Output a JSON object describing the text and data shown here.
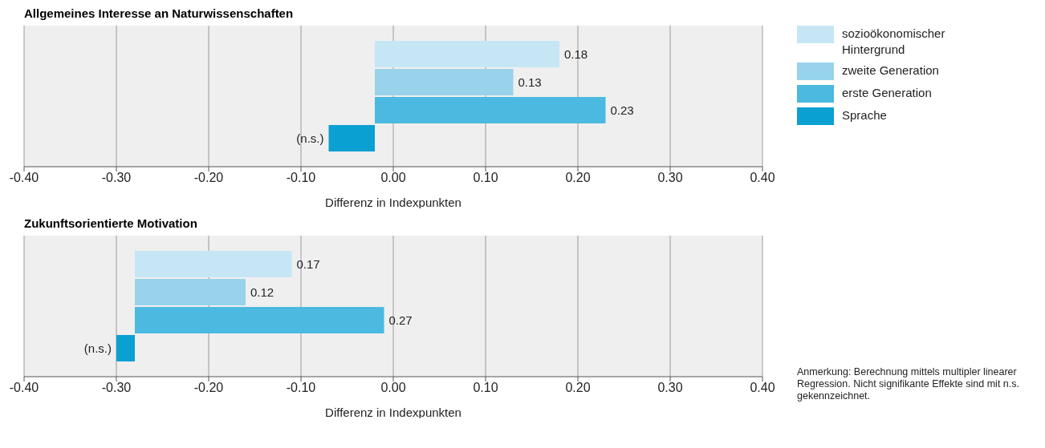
{
  "chart_data": [
    {
      "type": "bar",
      "orientation": "horizontal",
      "title": "Allgemeines Interesse an Naturwissenschaften",
      "xlabel": "Differenz in Indexpunkten",
      "categories": [
        null,
        null,
        null,
        null
      ],
      "xlim": [
        -0.4,
        0.4
      ],
      "xticks": [
        {
          "value": -0.4,
          "label": "-0.40"
        },
        {
          "value": -0.3,
          "label": "-0.30"
        },
        {
          "value": -0.2,
          "label": "-0.20"
        },
        {
          "value": -0.1,
          "label": "-0.10"
        },
        {
          "value": 0,
          "label": "0.00"
        },
        {
          "value": 0.1,
          "label": "0.10"
        },
        {
          "value": 0.2,
          "label": "0.20"
        },
        {
          "value": 0.3,
          "label": "0.30"
        },
        {
          "value": 0.4,
          "label": "0.40"
        }
      ],
      "grid": "x",
      "legend": "right",
      "series": [
        {
          "name": "sozioökonomischer Hintergrund",
          "color": "#c6e6f5",
          "base": [
            -0.02,
            null,
            null,
            null
          ],
          "values": [
            0.2,
            null,
            null,
            null
          ],
          "value_labels": [
            "0.18",
            null,
            null,
            null
          ]
        },
        {
          "name": "zweite Generation",
          "color": "#97d3ea",
          "base": [
            null,
            -0.02,
            null,
            null
          ],
          "values": [
            null,
            0.15,
            null,
            null
          ],
          "value_labels": [
            null,
            "0.13",
            null,
            null
          ]
        },
        {
          "name": "erste Generation",
          "color": "#4bb9e0",
          "base": [
            null,
            null,
            -0.02,
            null
          ],
          "values": [
            null,
            null,
            0.25,
            null
          ],
          "value_labels": [
            null,
            null,
            "0.23",
            null
          ]
        },
        {
          "name": "Sprache",
          "color": "#0aa0d2",
          "base": [
            null,
            null,
            null,
            -0.02
          ],
          "values": [
            null,
            null,
            null,
            -0.05
          ],
          "value_labels": [
            null,
            null,
            null,
            "(n.s.)"
          ]
        }
      ]
    },
    {
      "type": "bar",
      "orientation": "horizontal",
      "title": "Zukunftsorientierte Motivation",
      "xlabel": "Differenz in Indexpunkten",
      "categories": [
        null,
        null,
        null,
        null
      ],
      "xlim": [
        -0.4,
        0.4
      ],
      "xticks": [
        {
          "value": -0.4,
          "label": "-0.40"
        },
        {
          "value": -0.3,
          "label": "-0.30"
        },
        {
          "value": -0.2,
          "label": "-0.20"
        },
        {
          "value": -0.1,
          "label": "-0.10"
        },
        {
          "value": 0,
          "label": "0.00"
        },
        {
          "value": 0.1,
          "label": "0.10"
        },
        {
          "value": 0.2,
          "label": "0.20"
        },
        {
          "value": 0.3,
          "label": "0.30"
        },
        {
          "value": 0.4,
          "label": "0.40"
        }
      ],
      "grid": "x",
      "annotations": [
        "Anmerkung: Berechnung mittels multipler linearer Regression. Nicht signifikante Effekte sind mit n.s. gekennzeichnet."
      ],
      "series": [
        {
          "color": "#c6e6f5",
          "base": [
            -0.28,
            null,
            null,
            null
          ],
          "values": [
            0.17,
            null,
            null,
            null
          ],
          "value_labels": [
            "0.17",
            null,
            null,
            null
          ]
        },
        {
          "color": "#97d3ea",
          "base": [
            null,
            -0.28,
            null,
            null
          ],
          "values": [
            null,
            0.12,
            null,
            null
          ],
          "value_labels": [
            null,
            "0.12",
            null,
            null
          ]
        },
        {
          "color": "#4bb9e0",
          "base": [
            null,
            null,
            -0.28,
            null
          ],
          "values": [
            null,
            null,
            0.27,
            null
          ],
          "value_labels": [
            null,
            null,
            "0.27",
            null
          ]
        },
        {
          "color": "#0aa0d2",
          "base": [
            null,
            null,
            null,
            -0.28
          ],
          "values": [
            null,
            null,
            null,
            -0.02
          ],
          "value_labels": [
            null,
            null,
            null,
            "(n.s.)"
          ]
        }
      ]
    }
  ]
}
